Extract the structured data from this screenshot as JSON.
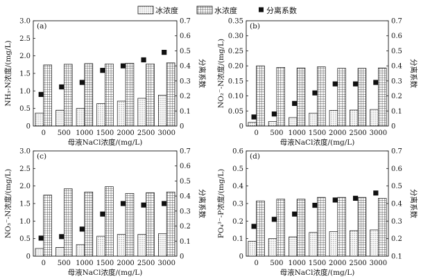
{
  "legend": [
    {
      "key": "ice",
      "label": "冰浓度"
    },
    {
      "key": "water",
      "label": "水浓度"
    },
    {
      "key": "coef",
      "label": "分离系数"
    }
  ],
  "chart_data": [
    {
      "type": "bar",
      "panel_label": "(a)",
      "categories": [
        "0",
        "500",
        "1000",
        "1500",
        "2000",
        "2500",
        "3000"
      ],
      "xlabel": "母液NaCl浓度/(mg/L)",
      "ylabel": "NH₃-N浓度/(mg/L)",
      "ylabel2": "分离系数",
      "ylim": [
        0,
        3.0
      ],
      "yticks": [
        "0",
        "0.5",
        "1.0",
        "1.5",
        "2.0",
        "2.5",
        "3.0"
      ],
      "y2lim": [
        0,
        0.7
      ],
      "y2ticks": [
        "0",
        "0.1",
        "0.2",
        "0.3",
        "0.4",
        "0.5",
        "0.6",
        "0.7"
      ],
      "series": [
        {
          "name": "冰浓度",
          "kind": "bar",
          "pattern": "dots",
          "values": [
            0.37,
            0.45,
            0.5,
            0.64,
            0.71,
            0.79,
            0.88
          ]
        },
        {
          "name": "水浓度",
          "kind": "bar",
          "pattern": "grid",
          "values": [
            1.74,
            1.76,
            1.78,
            1.77,
            1.79,
            1.77,
            1.8
          ]
        },
        {
          "name": "分离系数",
          "kind": "scatter",
          "axis": "right",
          "values": [
            0.21,
            0.26,
            0.29,
            0.37,
            0.4,
            0.44,
            0.49
          ]
        }
      ]
    },
    {
      "type": "bar",
      "panel_label": "(b)",
      "categories": [
        "0",
        "500",
        "1000",
        "1500",
        "2000",
        "2500",
        "3000"
      ],
      "xlabel": "母液NaCl浓度/(mg/L)",
      "ylabel": "NO₂⁻-N浓度/(mg/L)",
      "ylabel2": "分离系数",
      "ylim": [
        0,
        0.35
      ],
      "yticks": [
        "0",
        "0.05",
        "0.10",
        "0.15",
        "0.20",
        "0.25",
        "0.30",
        "0.35"
      ],
      "y2lim": [
        0,
        0.7
      ],
      "y2ticks": [
        "0",
        "0.1",
        "0.2",
        "0.3",
        "0.4",
        "0.5",
        "0.6",
        "0.7"
      ],
      "series": [
        {
          "name": "冰浓度",
          "kind": "bar",
          "pattern": "dots",
          "values": [
            0.012,
            0.015,
            0.028,
            0.043,
            0.052,
            0.053,
            0.055
          ]
        },
        {
          "name": "水浓度",
          "kind": "bar",
          "pattern": "grid",
          "values": [
            0.2,
            0.195,
            0.193,
            0.197,
            0.192,
            0.192,
            0.193
          ]
        },
        {
          "name": "分离系数",
          "kind": "scatter",
          "axis": "right",
          "values": [
            0.06,
            0.08,
            0.15,
            0.22,
            0.28,
            0.28,
            0.29
          ]
        }
      ]
    },
    {
      "type": "bar",
      "panel_label": "(c)",
      "categories": [
        "0",
        "500",
        "1000",
        "1500",
        "2000",
        "2500",
        "3000"
      ],
      "xlabel": "母液NaCl浓度/(mg/L)",
      "ylabel": "NO₃⁻-N浓度/(mg/L)",
      "ylabel2": "分离系数",
      "ylim": [
        0,
        3.0
      ],
      "yticks": [
        "0",
        "0.5",
        "1.0",
        "1.5",
        "2.0",
        "2.5",
        "3.0"
      ],
      "y2lim": [
        0,
        0.7
      ],
      "y2ticks": [
        "0",
        "0.1",
        "0.2",
        "0.3",
        "0.4",
        "0.5",
        "0.6",
        "0.7"
      ],
      "series": [
        {
          "name": "冰浓度",
          "kind": "bar",
          "pattern": "dots",
          "values": [
            0.22,
            0.25,
            0.33,
            0.57,
            0.62,
            0.62,
            0.64
          ]
        },
        {
          "name": "水浓度",
          "kind": "bar",
          "pattern": "grid",
          "values": [
            1.74,
            1.92,
            1.83,
            1.98,
            1.79,
            1.81,
            1.83
          ]
        },
        {
          "name": "分离系数",
          "kind": "scatter",
          "axis": "right",
          "values": [
            0.12,
            0.13,
            0.18,
            0.28,
            0.35,
            0.34,
            0.35
          ]
        }
      ]
    },
    {
      "type": "bar",
      "panel_label": "(d)",
      "categories": [
        "0",
        "500",
        "1000",
        "1500",
        "2000",
        "2500",
        "3000"
      ],
      "xlabel": "母液NaCl浓度/(mg/L)",
      "ylabel": "PO₄³⁻-P浓度/(mg/L)",
      "ylabel2": "分离系数",
      "ylim": [
        0,
        0.6
      ],
      "yticks": [
        "0",
        "0.1",
        "0.2",
        "0.3",
        "0.4",
        "0.5",
        "0.6"
      ],
      "y2lim": [
        0.1,
        0.7
      ],
      "y2ticks": [
        "0.1",
        "0.2",
        "0.3",
        "0.4",
        "0.5",
        "0.6",
        "0.7"
      ],
      "series": [
        {
          "name": "冰浓度",
          "kind": "bar",
          "pattern": "dots",
          "values": [
            0.085,
            0.1,
            0.11,
            0.135,
            0.14,
            0.145,
            0.15
          ]
        },
        {
          "name": "水浓度",
          "kind": "bar",
          "pattern": "grid",
          "values": [
            0.315,
            0.325,
            0.325,
            0.335,
            0.335,
            0.335,
            0.33
          ]
        },
        {
          "name": "分离系数",
          "kind": "scatter",
          "axis": "right",
          "values": [
            0.27,
            0.31,
            0.34,
            0.39,
            0.42,
            0.43,
            0.46
          ]
        }
      ]
    }
  ]
}
